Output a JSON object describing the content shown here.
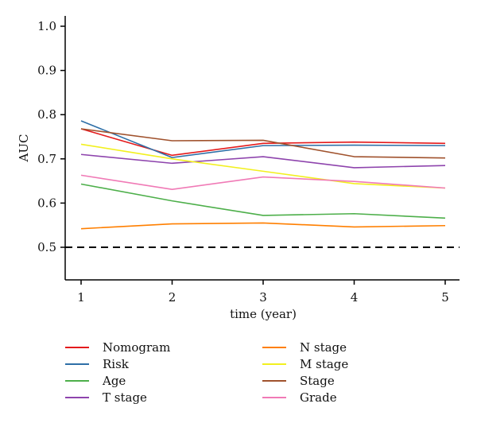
{
  "chart_data": {
    "type": "line",
    "title": "",
    "xlabel": "time (year)",
    "ylabel": "AUC",
    "x": [
      1,
      2,
      3,
      4,
      5
    ],
    "xlim": [
      1,
      5
    ],
    "ylim": [
      0.5,
      1.0
    ],
    "yticks": [
      "0.5",
      "0.6",
      "0.7",
      "0.8",
      "0.9",
      "1.0"
    ],
    "xticks": [
      "1",
      "2",
      "3",
      "4",
      "5"
    ],
    "reference_line": {
      "y": 0.5,
      "style": "dashed",
      "color": "#000000"
    },
    "grid": false,
    "legend_position": "bottom",
    "series": [
      {
        "name": "Nomogram",
        "color": "#e41a1c",
        "values": [
          0.768,
          0.708,
          0.735,
          0.738,
          0.735
        ]
      },
      {
        "name": "Risk",
        "color": "#2e6fa7",
        "values": [
          0.786,
          0.703,
          0.73,
          0.731,
          0.73
        ]
      },
      {
        "name": "Age",
        "color": "#4daf4a",
        "values": [
          0.643,
          0.605,
          0.572,
          0.576,
          0.566
        ]
      },
      {
        "name": "T stage",
        "color": "#8e44ad",
        "values": [
          0.71,
          0.69,
          0.705,
          0.68,
          0.685
        ]
      },
      {
        "name": "N stage",
        "color": "#ff7f00",
        "values": [
          0.542,
          0.553,
          0.555,
          0.546,
          0.549
        ]
      },
      {
        "name": "M stage",
        "color": "#f2f01f",
        "values": [
          0.733,
          0.7,
          0.672,
          0.644,
          0.634
        ]
      },
      {
        "name": "Stage",
        "color": "#a0522d",
        "values": [
          0.768,
          0.741,
          0.742,
          0.705,
          0.702
        ]
      },
      {
        "name": "Grade",
        "color": "#f07ab6",
        "values": [
          0.663,
          0.631,
          0.659,
          0.649,
          0.634
        ]
      }
    ]
  }
}
